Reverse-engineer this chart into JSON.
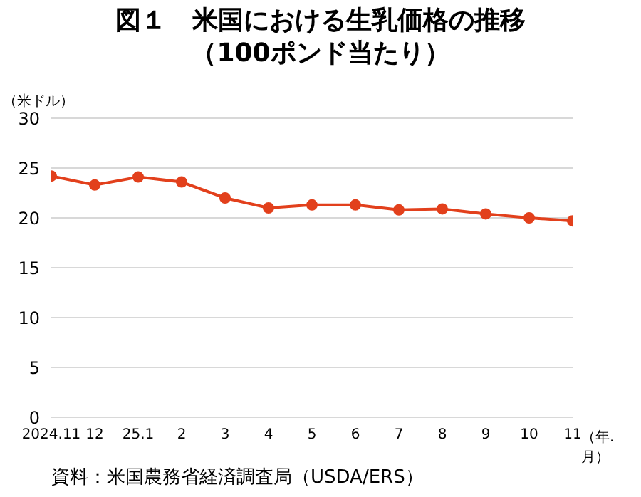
{
  "chart_data": {
    "type": "line",
    "title": "図１　米国における生乳価格の推移",
    "subtitle": "（100ポンド当たり）",
    "ylabel": "（米ドル）",
    "xlabel": "（年.月）",
    "categories": [
      "2024.11",
      "12",
      "25.1",
      "2",
      "3",
      "4",
      "5",
      "6",
      "7",
      "8",
      "9",
      "10",
      "11"
    ],
    "series": [
      {
        "color": "#e2401c",
        "values": [
          24.2,
          23.3,
          24.1,
          23.6,
          22.0,
          21.0,
          21.3,
          21.3,
          20.8,
          20.9,
          20.4,
          20.0,
          19.7
        ]
      }
    ],
    "ylim": [
      0,
      30
    ],
    "yticks": [
      0,
      5,
      10,
      15,
      20,
      25,
      30
    ],
    "grid": "y",
    "marker": "circle",
    "line_style": "solid",
    "legend": false,
    "annotations": [
      "資料：米国農務省経済調査局（USDA/ERS）"
    ]
  }
}
